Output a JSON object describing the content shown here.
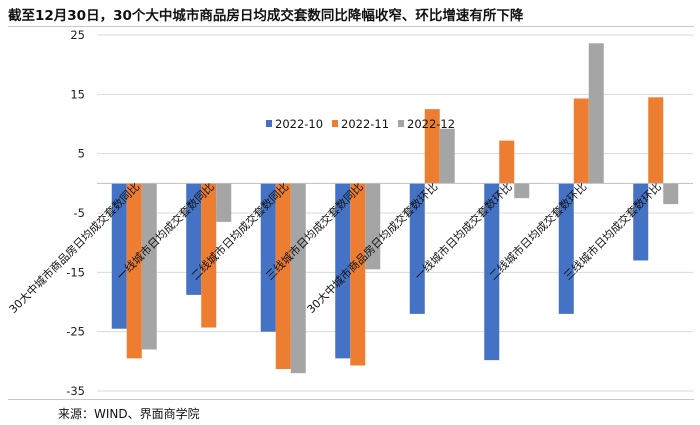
{
  "title": "截至12月30日，30个大中城市商品房日均成交套数同比降幅收窄、环比增速有所下降",
  "source": "来源：WIND、界面商学院",
  "colors": {
    "s1": "#4472C4",
    "s2": "#ED7D31",
    "s3": "#A5A5A5",
    "grid": "#d9d9d9"
  },
  "chart_data": {
    "type": "bar",
    "categories": [
      "30大中城市商品房日均成交套数同比",
      "一线城市日均成交套数同比",
      "二线城市日均成交套数同比",
      "三线城市日均成交套数同比",
      "30大中城市商品房日均成交套数环比",
      "一线城市日均成交套数环比",
      "二线城市日均成交套数环比",
      "三线城市日均成交套数环比"
    ],
    "series": [
      {
        "name": "2022-10",
        "values": [
          -24.5,
          -18.8,
          -25.0,
          -29.5,
          -22.0,
          -29.8,
          -22.0,
          -13.0
        ]
      },
      {
        "name": "2022-11",
        "values": [
          -29.5,
          -24.3,
          -31.3,
          -30.7,
          12.5,
          7.2,
          14.3,
          14.5
        ]
      },
      {
        "name": "2022-12",
        "values": [
          -28.0,
          -6.5,
          -32.0,
          -14.5,
          9.2,
          -2.5,
          23.6,
          -3.5
        ]
      }
    ],
    "ylim": [
      -35,
      25
    ],
    "yticks": [
      25,
      15,
      5,
      -5,
      -15,
      -25,
      -35
    ],
    "grid": true,
    "legend": "top-center",
    "xlabel": "",
    "ylabel": ""
  }
}
